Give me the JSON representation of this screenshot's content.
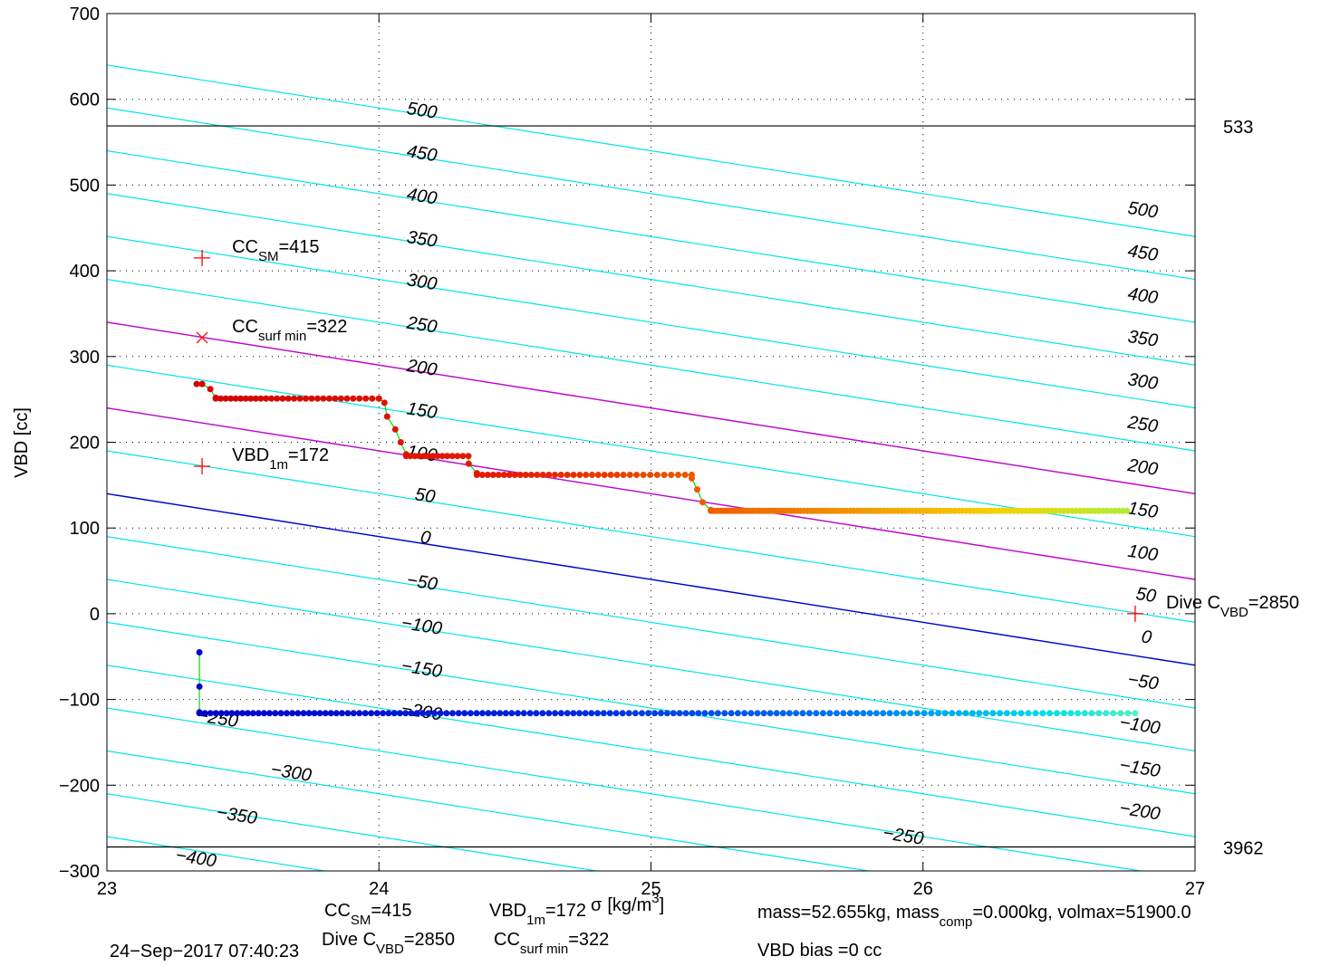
{
  "chart_data": {
    "type": "scatter",
    "xlabel": "σ",
    "xlabel_suffix": "[kg/m",
    "xlabel_sup": "3",
    "xlabel_end": "]",
    "ylabel": "VBD [cc]",
    "xlim": [
      23,
      27
    ],
    "ylim": [
      -300,
      700
    ],
    "xticks": [
      23,
      24,
      25,
      26,
      27
    ],
    "yticks": [
      -300,
      -200,
      -100,
      0,
      100,
      200,
      300,
      400,
      500,
      600,
      700
    ],
    "xtick_labels": [
      "23",
      "24",
      "25",
      "26",
      "27"
    ],
    "ytick_labels": [
      "−300",
      "−200",
      "−100",
      "0",
      "100",
      "200",
      "300",
      "400",
      "500",
      "600",
      "700"
    ],
    "grid": true,
    "hlines": [
      {
        "y": 569,
        "label": "533",
        "color": "#000000"
      },
      {
        "y": -272,
        "label": "3962",
        "color": "#000000"
      }
    ],
    "contour_lines": {
      "color": "#00e5e5",
      "x0": 23,
      "x1": 27,
      "y0_values": [
        640,
        590,
        540,
        490,
        440,
        390,
        340,
        290,
        240,
        190,
        140,
        90,
        40,
        -10,
        -60,
        -110,
        -160,
        -210,
        -260
      ],
      "slope": -50
    },
    "magenta_lines": [
      {
        "x0": 23,
        "y0": 340,
        "x1": 27,
        "y1": 140
      },
      {
        "x0": 23,
        "y0": 240,
        "x1": 27,
        "y1": 40
      }
    ],
    "magenta_color": "#cc00cc",
    "blue_line": {
      "x0": 23,
      "y0": 140,
      "x1": 27,
      "y1": -60,
      "color": "#0000cc"
    },
    "contour_labels_left": [
      {
        "x": 24.1,
        "y": 583,
        "text": "500"
      },
      {
        "x": 24.1,
        "y": 533,
        "text": "450"
      },
      {
        "x": 24.1,
        "y": 483,
        "text": "400"
      },
      {
        "x": 24.1,
        "y": 433,
        "text": "350"
      },
      {
        "x": 24.1,
        "y": 383,
        "text": "300"
      },
      {
        "x": 24.1,
        "y": 333,
        "text": "250"
      },
      {
        "x": 24.1,
        "y": 283,
        "text": "200"
      },
      {
        "x": 24.1,
        "y": 233,
        "text": "150"
      },
      {
        "x": 24.1,
        "y": 183,
        "text": "100"
      },
      {
        "x": 24.13,
        "y": 133,
        "text": "50"
      },
      {
        "x": 24.15,
        "y": 83,
        "text": "0"
      },
      {
        "x": 24.1,
        "y": 33,
        "text": "−50"
      },
      {
        "x": 24.08,
        "y": -17,
        "text": "−100"
      },
      {
        "x": 24.08,
        "y": -67,
        "text": "−150"
      },
      {
        "x": 24.08,
        "y": -117,
        "text": "−200"
      },
      {
        "x": 23.33,
        "y": -125,
        "text": "−250"
      },
      {
        "x": 23.6,
        "y": -188,
        "text": "−300"
      },
      {
        "x": 23.4,
        "y": -238,
        "text": "−350"
      },
      {
        "x": 23.25,
        "y": -288,
        "text": "−400"
      },
      {
        "x": 25.85,
        "y": -262,
        "text": "−250"
      }
    ],
    "contour_labels_right": [
      {
        "x": 26.75,
        "y": 467,
        "text": "500"
      },
      {
        "x": 26.75,
        "y": 417,
        "text": "450"
      },
      {
        "x": 26.75,
        "y": 367,
        "text": "400"
      },
      {
        "x": 26.75,
        "y": 317,
        "text": "350"
      },
      {
        "x": 26.75,
        "y": 267,
        "text": "300"
      },
      {
        "x": 26.75,
        "y": 217,
        "text": "250"
      },
      {
        "x": 26.75,
        "y": 167,
        "text": "200"
      },
      {
        "x": 26.75,
        "y": 117,
        "text": "150"
      },
      {
        "x": 26.75,
        "y": 67,
        "text": "100"
      },
      {
        "x": 26.78,
        "y": 17,
        "text": "50"
      },
      {
        "x": 26.8,
        "y": -33,
        "text": "0"
      },
      {
        "x": 26.75,
        "y": -83,
        "text": "−50"
      },
      {
        "x": 26.72,
        "y": -133,
        "text": "−100"
      },
      {
        "x": 26.72,
        "y": -183,
        "text": "−150"
      },
      {
        "x": 26.72,
        "y": -233,
        "text": "−200"
      }
    ],
    "markers": [
      {
        "x": 23.35,
        "y": 415,
        "symbol": "+",
        "color": "#ff0000",
        "label": "CC",
        "sub": "SM",
        "value": "=415"
      },
      {
        "x": 23.35,
        "y": 322,
        "symbol": "×",
        "color": "#ff0000",
        "label": "CC",
        "sub": "surf min",
        "value": "=322"
      },
      {
        "x": 23.35,
        "y": 172,
        "symbol": "+",
        "color": "#ff0000",
        "label": "VBD",
        "sub": "1m",
        "value": "=172"
      },
      {
        "x": 26.78,
        "y": 0,
        "symbol": "+",
        "color": "#ff0000",
        "label": "Dive C",
        "sub": "VBD",
        "value": "=2850"
      }
    ],
    "series": [
      {
        "name": "upper",
        "line_color": "#00dd00",
        "segments": [
          {
            "x": [
              23.33,
              23.35,
              23.38,
              23.4
            ],
            "y": [
              268,
              268,
              262,
              252
            ]
          },
          {
            "x_start": 23.4,
            "x_end": 24.0,
            "y": 251,
            "n": 30
          },
          {
            "x": [
              24.0,
              24.02,
              24.03,
              24.06,
              24.08,
              24.1
            ],
            "y": [
              251,
              246,
              230,
              215,
              200,
              186
            ]
          },
          {
            "x_start": 24.1,
            "x_end": 24.33,
            "y": 184,
            "n": 14
          },
          {
            "x": [
              24.33,
              24.36
            ],
            "y": [
              175,
              164
            ]
          },
          {
            "x_start": 24.36,
            "x_end": 25.15,
            "y": 162,
            "n": 36
          },
          {
            "x": [
              25.15,
              25.17,
              25.19,
              25.22
            ],
            "y": [
              158,
              145,
              130,
              121
            ]
          },
          {
            "x_start": 25.22,
            "x_end": 26.75,
            "y": 120,
            "n": 120
          }
        ]
      },
      {
        "name": "lower",
        "line_color": "#00dd00",
        "segments": [
          {
            "x": [
              23.34,
              23.34,
              23.34
            ],
            "y": [
              -45,
              -85,
              -115
            ]
          },
          {
            "x_start": 23.34,
            "x_end": 26.78,
            "y": -116,
            "n": 150
          }
        ]
      }
    ],
    "footer": {
      "items": [
        {
          "label": "CC",
          "sub": "SM",
          "value": "=415"
        },
        {
          "label": "VBD",
          "sub": "1m",
          "value": "=172"
        },
        {
          "label": "Dive C",
          "sub": "VBD",
          "value": "=2850"
        },
        {
          "label": "CC",
          "sub": "surf min",
          "value": "=322"
        }
      ],
      "timestamp": "24−Sep−2017 07:40:23",
      "mass_text_1": "mass=52.655kg, mass",
      "mass_sub": "comp",
      "mass_text_2": "=0.000kg, volmax=51900.0",
      "bias_text": "VBD bias =0 cc"
    }
  }
}
